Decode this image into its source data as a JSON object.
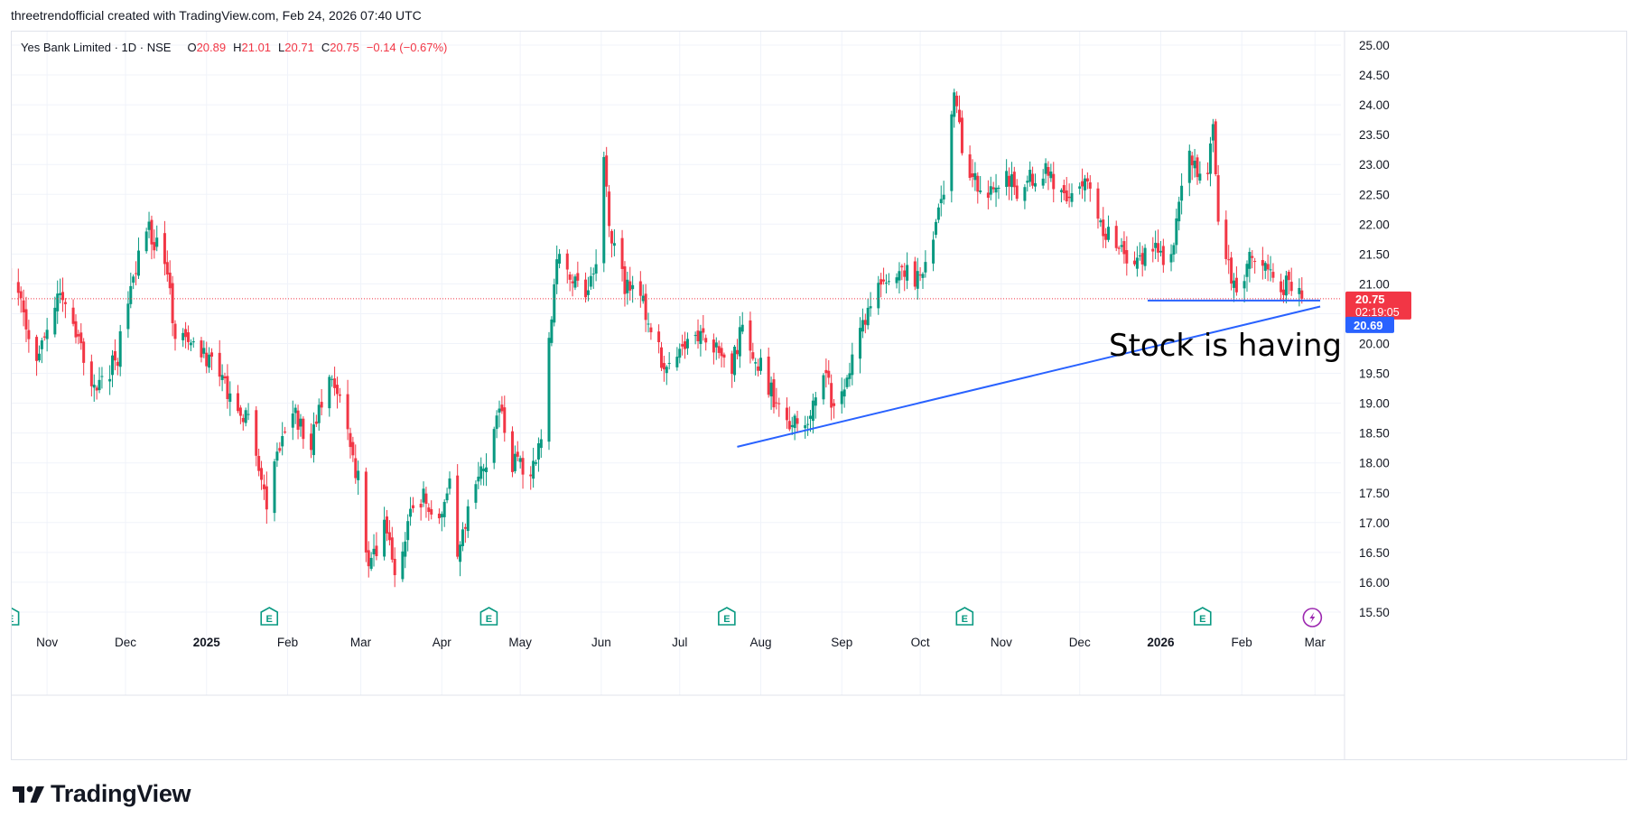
{
  "caption": "threetrendofficial created with TradingView.com, Feb 24, 2026 07:40 UTC",
  "legend": {
    "symbol": "Yes Bank Limited · 1D · NSE",
    "o_label": "O",
    "o_value": "20.89",
    "h_label": "H",
    "h_value": "21.01",
    "l_label": "L",
    "l_value": "20.71",
    "c_label": "C",
    "c_value": "20.75",
    "change": "−0.14 (−0.67%)"
  },
  "price_badge": {
    "price": "20.75",
    "countdown": "02:19:05",
    "color": "#f23645"
  },
  "trend_badge": {
    "price": "20.69",
    "color": "#2962ff"
  },
  "annotation": "Stock is having supp",
  "brand": "TradingView",
  "colors": {
    "up": "#089981",
    "down": "#f23645",
    "trendline": "#2962ff",
    "grid": "#f0f3fa",
    "events": "#089981",
    "flash": "#9c27b0"
  },
  "chart_data": {
    "type": "candlestick",
    "symbol": "Yes Bank Limited",
    "interval": "1D",
    "exchange": "NSE",
    "yaxis": {
      "ylim": [
        15.25,
        25.25
      ],
      "ticks": [
        "15.50",
        "16.00",
        "16.50",
        "17.00",
        "17.50",
        "18.00",
        "18.50",
        "19.00",
        "19.50",
        "20.00",
        "20.50",
        "21.00",
        "21.50",
        "22.00",
        "22.50",
        "23.00",
        "23.50",
        "24.00",
        "24.50",
        "25.00"
      ]
    },
    "xaxis": {
      "ticks": [
        {
          "label": "Nov",
          "date": "2024-11-01"
        },
        {
          "label": "Dec",
          "date": "2024-12-01"
        },
        {
          "label": "2025",
          "date": "2025-01-01",
          "bold": true
        },
        {
          "label": "Feb",
          "date": "2025-02-01"
        },
        {
          "label": "Mar",
          "date": "2025-03-01"
        },
        {
          "label": "Apr",
          "date": "2025-04-01"
        },
        {
          "label": "May",
          "date": "2025-05-01"
        },
        {
          "label": "Jun",
          "date": "2025-06-01"
        },
        {
          "label": "Jul",
          "date": "2025-07-01"
        },
        {
          "label": "Aug",
          "date": "2025-08-01"
        },
        {
          "label": "Sep",
          "date": "2025-09-01"
        },
        {
          "label": "Oct",
          "date": "2025-10-01"
        },
        {
          "label": "Nov",
          "date": "2025-11-01"
        },
        {
          "label": "Dec",
          "date": "2025-12-01"
        },
        {
          "label": "2026",
          "date": "2026-01-01",
          "bold": true
        },
        {
          "label": "Feb",
          "date": "2026-02-01"
        },
        {
          "label": "Mar",
          "date": "2026-03-01"
        }
      ]
    },
    "date_range": [
      "2024-10-16",
      "2026-02-24"
    ],
    "last_close": 20.75,
    "close_path": [
      [
        "2024-10-16",
        21.4
      ],
      [
        "2024-10-22",
        20.6
      ],
      [
        "2024-10-28",
        19.7
      ],
      [
        "2024-11-06",
        20.9
      ],
      [
        "2024-11-13",
        20.0
      ],
      [
        "2024-11-20",
        19.2
      ],
      [
        "2024-11-28",
        19.8
      ],
      [
        "2024-12-04",
        21.2
      ],
      [
        "2024-12-10",
        21.9
      ],
      [
        "2024-12-16",
        21.4
      ],
      [
        "2024-12-20",
        20.2
      ],
      [
        "2024-12-27",
        19.9
      ],
      [
        "2025-01-06",
        19.6
      ],
      [
        "2025-01-10",
        19.1
      ],
      [
        "2025-01-17",
        18.7
      ],
      [
        "2025-01-24",
        17.2
      ],
      [
        "2025-01-28",
        18.2
      ],
      [
        "2025-02-03",
        18.9
      ],
      [
        "2025-02-10",
        18.3
      ],
      [
        "2025-02-14",
        19.0
      ],
      [
        "2025-02-18",
        19.4
      ],
      [
        "2025-02-24",
        18.5
      ],
      [
        "2025-02-28",
        17.7
      ],
      [
        "2025-03-04",
        16.2
      ],
      [
        "2025-03-10",
        16.9
      ],
      [
        "2025-03-14",
        16.2
      ],
      [
        "2025-03-20",
        17.1
      ],
      [
        "2025-03-25",
        17.4
      ],
      [
        "2025-03-31",
        16.9
      ],
      [
        "2025-04-04",
        17.6
      ],
      [
        "2025-04-07",
        16.3
      ],
      [
        "2025-04-11",
        17.2
      ],
      [
        "2025-04-17",
        17.9
      ],
      [
        "2025-04-23",
        18.9
      ],
      [
        "2025-04-28",
        18.0
      ],
      [
        "2025-05-05",
        17.9
      ],
      [
        "2025-05-09",
        18.4
      ],
      [
        "2025-05-12",
        20.1
      ],
      [
        "2025-05-15",
        21.5
      ],
      [
        "2025-05-20",
        21.2
      ],
      [
        "2025-05-26",
        20.9
      ],
      [
        "2025-05-30",
        21.4
      ],
      [
        "2025-06-02",
        23.2
      ],
      [
        "2025-06-04",
        21.8
      ],
      [
        "2025-06-10",
        21.0
      ],
      [
        "2025-06-16",
        20.8
      ],
      [
        "2025-06-20",
        20.2
      ],
      [
        "2025-06-26",
        19.5
      ],
      [
        "2025-07-02",
        19.8
      ],
      [
        "2025-07-08",
        20.2
      ],
      [
        "2025-07-14",
        19.9
      ],
      [
        "2025-07-21",
        19.6
      ],
      [
        "2025-07-25",
        20.3
      ],
      [
        "2025-07-31",
        19.7
      ],
      [
        "2025-08-06",
        19.1
      ],
      [
        "2025-08-12",
        18.6
      ],
      [
        "2025-08-18",
        18.7
      ],
      [
        "2025-08-22",
        19.1
      ],
      [
        "2025-08-26",
        19.5
      ],
      [
        "2025-08-29",
        18.8
      ],
      [
        "2025-09-03",
        19.4
      ],
      [
        "2025-09-08",
        20.1
      ],
      [
        "2025-09-12",
        20.7
      ],
      [
        "2025-09-18",
        21.0
      ],
      [
        "2025-09-24",
        21.2
      ],
      [
        "2025-09-30",
        21.1
      ],
      [
        "2025-10-06",
        21.8
      ],
      [
        "2025-10-10",
        22.5
      ],
      [
        "2025-10-14",
        24.2
      ],
      [
        "2025-10-17",
        23.3
      ],
      [
        "2025-10-22",
        22.7
      ],
      [
        "2025-10-28",
        22.6
      ],
      [
        "2025-11-03",
        22.9
      ],
      [
        "2025-11-07",
        22.5
      ],
      [
        "2025-11-13",
        22.8
      ],
      [
        "2025-11-19",
        22.9
      ],
      [
        "2025-11-25",
        22.4
      ],
      [
        "2025-12-01",
        22.6
      ],
      [
        "2025-12-05",
        22.7
      ],
      [
        "2025-12-10",
        21.9
      ],
      [
        "2025-12-16",
        21.6
      ],
      [
        "2025-12-22",
        21.4
      ],
      [
        "2025-12-29",
        21.6
      ],
      [
        "2026-01-05",
        21.4
      ],
      [
        "2026-01-08",
        22.5
      ],
      [
        "2026-01-12",
        23.2
      ],
      [
        "2026-01-15",
        22.8
      ],
      [
        "2026-01-19",
        23.0
      ],
      [
        "2026-01-21",
        23.8
      ],
      [
        "2026-01-23",
        21.9
      ],
      [
        "2026-01-28",
        21.1
      ],
      [
        "2026-01-30",
        20.8
      ],
      [
        "2026-02-03",
        21.3
      ],
      [
        "2026-02-06",
        21.5
      ],
      [
        "2026-02-10",
        21.3
      ],
      [
        "2026-02-13",
        21.1
      ],
      [
        "2026-02-16",
        20.9
      ],
      [
        "2026-02-19",
        21.1
      ],
      [
        "2026-02-24",
        20.75
      ]
    ],
    "drawings": [
      {
        "type": "trend_line",
        "from": [
          "2025-07-23",
          18.27
        ],
        "to": [
          "2026-03-03",
          20.62
        ]
      },
      {
        "type": "horizontal_segment",
        "from": [
          "2025-12-27",
          20.72
        ],
        "to": [
          "2026-03-03",
          20.72
        ]
      },
      {
        "type": "horizontal_price_line",
        "price": 20.75,
        "style": "dotted"
      }
    ],
    "events": [
      {
        "type": "earnings",
        "date": "2024-10-18"
      },
      {
        "type": "earnings",
        "date": "2025-01-25"
      },
      {
        "type": "earnings",
        "date": "2025-04-19"
      },
      {
        "type": "earnings",
        "date": "2025-07-19"
      },
      {
        "type": "earnings",
        "date": "2025-10-18"
      },
      {
        "type": "earnings",
        "date": "2026-01-17"
      },
      {
        "type": "flash",
        "date": "2026-02-28"
      }
    ]
  }
}
